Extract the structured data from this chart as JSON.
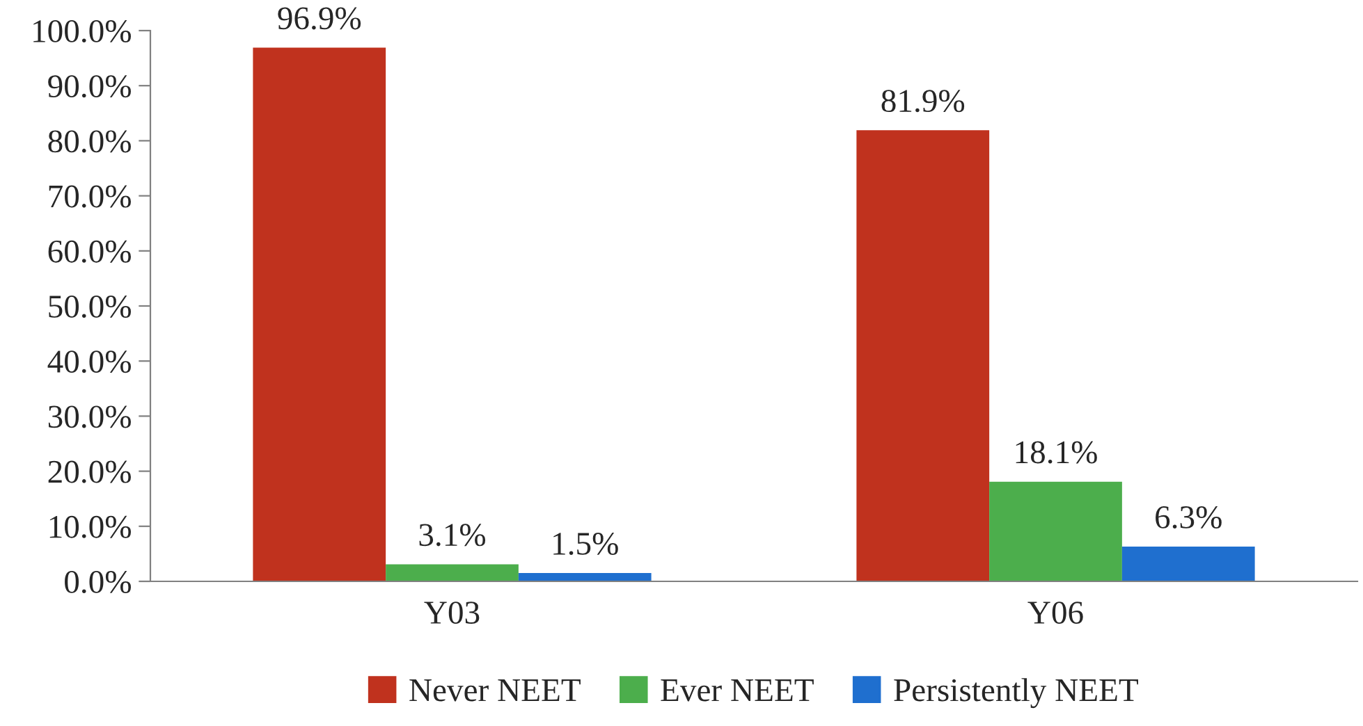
{
  "chart_data": {
    "type": "bar",
    "categories": [
      "Y03",
      "Y06"
    ],
    "series": [
      {
        "name": "Never NEET",
        "color": "#c0321e",
        "values": [
          96.9,
          81.9
        ],
        "value_labels": [
          "96.9%",
          "81.9%"
        ]
      },
      {
        "name": "Ever NEET",
        "color": "#4cae4c",
        "values": [
          3.1,
          18.1
        ],
        "value_labels": [
          "3.1%",
          "18.1%"
        ]
      },
      {
        "name": "Persistently NEET",
        "color": "#1f6fcf",
        "values": [
          1.5,
          6.3
        ],
        "value_labels": [
          "1.5%",
          "6.3%"
        ]
      }
    ],
    "ylim": [
      0,
      100
    ],
    "yticks": [
      {
        "value": 0,
        "label": "0.0%"
      },
      {
        "value": 10,
        "label": "10.0%"
      },
      {
        "value": 20,
        "label": "20.0%"
      },
      {
        "value": 30,
        "label": "30.0%"
      },
      {
        "value": 40,
        "label": "40.0%"
      },
      {
        "value": 50,
        "label": "50.0%"
      },
      {
        "value": 60,
        "label": "60.0%"
      },
      {
        "value": 70,
        "label": "70.0%"
      },
      {
        "value": 80,
        "label": "80.0%"
      },
      {
        "value": 90,
        "label": "90.0%"
      },
      {
        "value": 100,
        "label": "100.0%"
      }
    ],
    "grid": false,
    "legend": "bottom"
  }
}
